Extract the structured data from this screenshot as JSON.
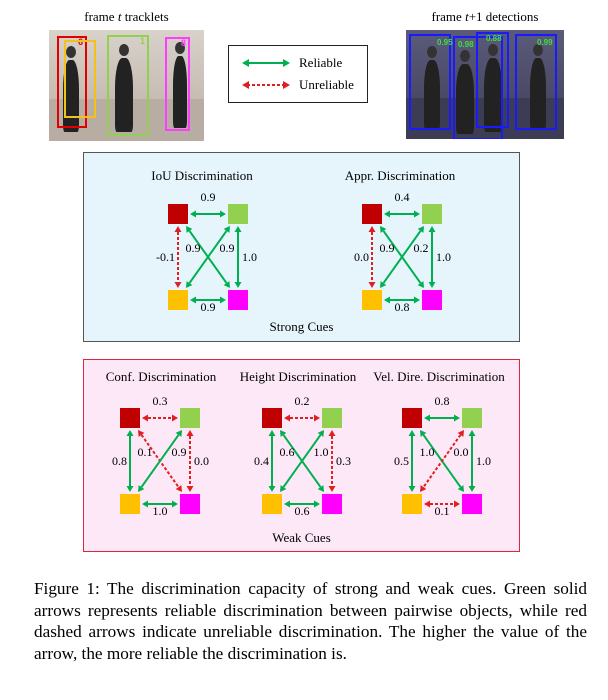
{
  "photos": {
    "left_label_pre": "frame ",
    "left_label_var": "t",
    "left_label_post": " tracklets",
    "right_label_pre": "frame ",
    "right_label_var": "t",
    "right_label_post": "+1 detections",
    "left_ids": [
      "6",
      "1",
      "8"
    ],
    "right_scores": [
      "0.95",
      "0.98",
      "0.88",
      "0.99"
    ]
  },
  "legend": {
    "reliable": "Reliable",
    "unreliable": "Unreliable"
  },
  "colors": {
    "node_red": "#c00000",
    "node_green": "#92d050",
    "node_yellow": "#ffc000",
    "node_magenta": "#ff00ff",
    "reliable": "#00b050",
    "unreliable": "#e02020"
  },
  "strong": {
    "label": "Strong Cues",
    "graphs": [
      {
        "title": "IoU Discrimination",
        "top": "0.9",
        "left": "-0.1",
        "right": "1.0",
        "bottom": "0.9",
        "diag_a": "0.9",
        "diag_b": "0.9",
        "reliable": {
          "top": true,
          "left": false,
          "right": true,
          "bottom": true,
          "diag_a": true,
          "diag_b": true
        }
      },
      {
        "title": "Appr. Discrimination",
        "top": "0.4",
        "left": "0.0",
        "right": "1.0",
        "bottom": "0.8",
        "diag_a": "0.9",
        "diag_b": "0.2",
        "reliable": {
          "top": true,
          "left": false,
          "right": true,
          "bottom": true,
          "diag_a": true,
          "diag_b": true
        }
      }
    ]
  },
  "weak": {
    "label": "Weak Cues",
    "graphs": [
      {
        "title": "Conf. Discrimination",
        "top": "0.3",
        "left": "0.8",
        "right": "0.0",
        "bottom": "1.0",
        "diag_a": "0.1",
        "diag_b": "0.9",
        "reliable": {
          "top": false,
          "left": true,
          "right": false,
          "bottom": true,
          "diag_a": false,
          "diag_b": true
        }
      },
      {
        "title": "Height Discrimination",
        "top": "0.2",
        "left": "0.4",
        "right": "0.3",
        "bottom": "0.6",
        "diag_a": "0.6",
        "diag_b": "1.0",
        "reliable": {
          "top": false,
          "left": true,
          "right": false,
          "bottom": true,
          "diag_a": true,
          "diag_b": true
        }
      },
      {
        "title": "Vel. Dire. Discrimination",
        "top": "0.8",
        "left": "0.5",
        "right": "1.0",
        "bottom": "0.1",
        "diag_a": "1.0",
        "diag_b": "0.0",
        "reliable": {
          "top": true,
          "left": true,
          "right": true,
          "bottom": false,
          "diag_a": true,
          "diag_b": false
        }
      }
    ]
  },
  "caption": "Figure 1: The discrimination capacity of strong and weak cues. Green solid arrows represents reliable discrimination between pairwise objects, while red dashed arrows indicate unreliable discrimination. The higher the value of the arrow, the more reliable the discrimination is."
}
